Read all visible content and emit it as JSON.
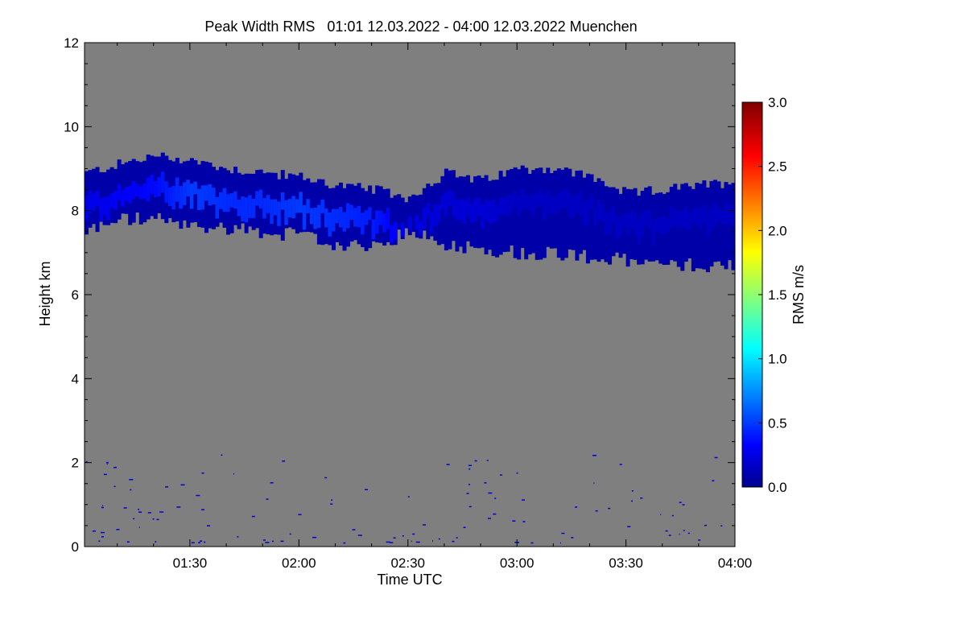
{
  "chart_data": {
    "type": "heatmap",
    "title": "Peak Width RMS   01:01 12.03.2022 - 04:00 12.03.2022 Muenchen",
    "xlabel": "Time UTC",
    "ylabel": "Height km",
    "x_range_minutes_utc": [
      61,
      240
    ],
    "xlim": [
      "01:01",
      "04:00"
    ],
    "x_ticks": [
      {
        "minute": 90,
        "label": "01:30"
      },
      {
        "minute": 120,
        "label": "02:00"
      },
      {
        "minute": 150,
        "label": "02:30"
      },
      {
        "minute": 180,
        "label": "03:00"
      },
      {
        "minute": 210,
        "label": "03:30"
      },
      {
        "minute": 240,
        "label": "04:00"
      }
    ],
    "ylim": [
      0,
      12
    ],
    "y_ticks": [
      0,
      2,
      4,
      6,
      8,
      10,
      12
    ],
    "background_color": "#7f7f7f",
    "colorbar": {
      "label": "RMS m/s",
      "range": [
        0.0,
        3.0
      ],
      "ticks": [
        "0.0",
        "0.5",
        "1.0",
        "1.5",
        "2.0",
        "2.5",
        "3.0"
      ],
      "colormap": "jet"
    },
    "cloud_layer": {
      "description_color": "mostly blue, RMS about 0.1-0.5 m/s",
      "time_minutes": [
        61,
        70,
        80,
        90,
        100,
        110,
        120,
        130,
        140,
        150,
        160,
        170,
        180,
        190,
        200,
        210,
        220,
        230,
        240
      ],
      "top_km": [
        8.9,
        9.1,
        9.3,
        9.2,
        9.0,
        8.9,
        8.8,
        8.6,
        8.5,
        8.3,
        8.9,
        8.7,
        9.0,
        9.0,
        8.8,
        8.4,
        8.5,
        8.6,
        8.7
      ],
      "base_km": [
        7.5,
        7.8,
        7.8,
        7.6,
        7.6,
        7.5,
        7.4,
        7.2,
        7.1,
        7.5,
        7.2,
        7.1,
        7.0,
        7.0,
        6.9,
        6.8,
        6.7,
        6.7,
        6.7
      ],
      "peak_rms_m_s": [
        0.3,
        0.35,
        0.4,
        0.55,
        0.5,
        0.5,
        0.55,
        0.5,
        0.45,
        0.3,
        0.25,
        0.25,
        0.2,
        0.2,
        0.2,
        0.2,
        0.2,
        0.2,
        0.2
      ]
    },
    "low_level_returns": {
      "height_range_km": [
        0.1,
        2.3
      ],
      "rms_m_s": 0.25,
      "note": "sparse isolated pixels"
    }
  }
}
